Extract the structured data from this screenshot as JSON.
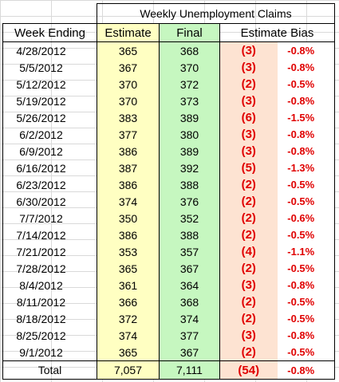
{
  "table": {
    "title": "Weekly Unemployment Claims",
    "headers": {
      "week_ending": "Week Ending",
      "estimate": "Estimate",
      "final": "Final",
      "estimate_bias": "Estimate Bias"
    },
    "rows": [
      {
        "week": "4/28/2012",
        "estimate": "365",
        "final": "368",
        "bias": "(3)",
        "bias_pct": "-0.8%"
      },
      {
        "week": "5/5/2012",
        "estimate": "367",
        "final": "370",
        "bias": "(3)",
        "bias_pct": "-0.8%"
      },
      {
        "week": "5/12/2012",
        "estimate": "370",
        "final": "372",
        "bias": "(2)",
        "bias_pct": "-0.5%"
      },
      {
        "week": "5/19/2012",
        "estimate": "370",
        "final": "373",
        "bias": "(3)",
        "bias_pct": "-0.8%"
      },
      {
        "week": "5/26/2012",
        "estimate": "383",
        "final": "389",
        "bias": "(6)",
        "bias_pct": "-1.5%"
      },
      {
        "week": "6/2/2012",
        "estimate": "377",
        "final": "380",
        "bias": "(3)",
        "bias_pct": "-0.8%"
      },
      {
        "week": "6/9/2012",
        "estimate": "386",
        "final": "389",
        "bias": "(3)",
        "bias_pct": "-0.8%"
      },
      {
        "week": "6/16/2012",
        "estimate": "387",
        "final": "392",
        "bias": "(5)",
        "bias_pct": "-1.3%"
      },
      {
        "week": "6/23/2012",
        "estimate": "386",
        "final": "388",
        "bias": "(2)",
        "bias_pct": "-0.5%"
      },
      {
        "week": "6/30/2012",
        "estimate": "374",
        "final": "376",
        "bias": "(2)",
        "bias_pct": "-0.5%"
      },
      {
        "week": "7/7/2012",
        "estimate": "350",
        "final": "352",
        "bias": "(2)",
        "bias_pct": "-0.6%"
      },
      {
        "week": "7/14/2012",
        "estimate": "386",
        "final": "388",
        "bias": "(2)",
        "bias_pct": "-0.5%"
      },
      {
        "week": "7/21/2012",
        "estimate": "353",
        "final": "357",
        "bias": "(4)",
        "bias_pct": "-1.1%"
      },
      {
        "week": "7/28/2012",
        "estimate": "365",
        "final": "367",
        "bias": "(2)",
        "bias_pct": "-0.5%"
      },
      {
        "week": "8/4/2012",
        "estimate": "361",
        "final": "364",
        "bias": "(3)",
        "bias_pct": "-0.8%"
      },
      {
        "week": "8/11/2012",
        "estimate": "366",
        "final": "368",
        "bias": "(2)",
        "bias_pct": "-0.5%"
      },
      {
        "week": "8/18/2012",
        "estimate": "372",
        "final": "374",
        "bias": "(2)",
        "bias_pct": "-0.5%"
      },
      {
        "week": "8/25/2012",
        "estimate": "374",
        "final": "377",
        "bias": "(3)",
        "bias_pct": "-0.8%"
      },
      {
        "week": "9/1/2012",
        "estimate": "365",
        "final": "367",
        "bias": "(2)",
        "bias_pct": "-0.5%"
      }
    ],
    "total": {
      "label": "Total",
      "estimate": "7,057",
      "final": "7,111",
      "bias": "(54)",
      "bias_pct": "-0.8%"
    }
  },
  "colors": {
    "estimate_fill": "#ffffc2",
    "final_fill": "#c6f7c0",
    "bias_fill": "#fde3d2",
    "negative_text": "#e00000",
    "gridline": "#d9d9d9"
  }
}
